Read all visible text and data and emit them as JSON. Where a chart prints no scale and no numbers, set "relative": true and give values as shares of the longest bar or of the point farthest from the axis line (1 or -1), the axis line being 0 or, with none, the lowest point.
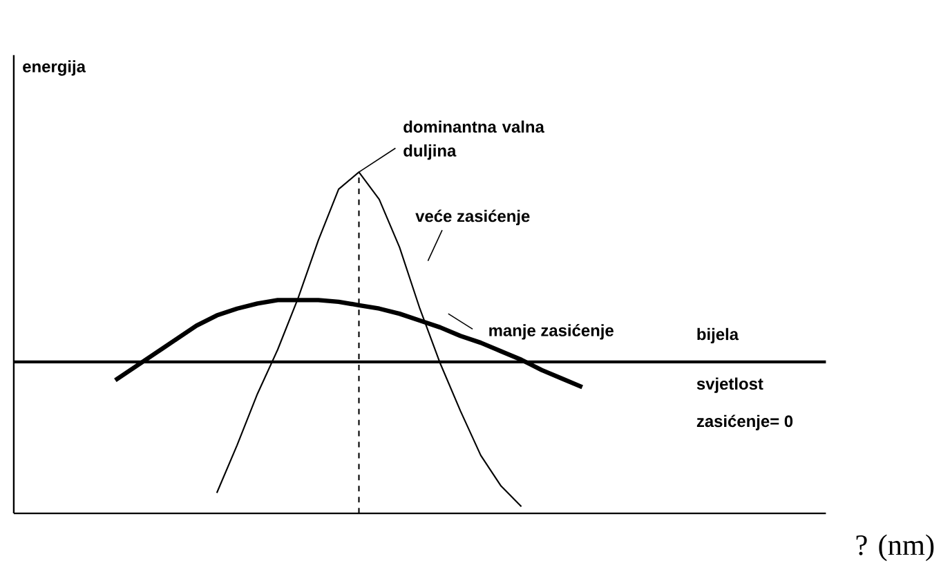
{
  "chart_data": {
    "type": "line",
    "relative": true,
    "xlabel": "? (nm)",
    "marker": "none",
    "line_style": "solid",
    "categories": [
      null,
      null,
      null,
      null,
      null,
      null,
      null,
      null,
      null,
      null,
      null,
      null,
      null,
      null,
      null,
      null,
      null,
      null,
      null,
      null,
      null,
      null,
      null,
      null,
      null,
      null,
      null,
      null,
      null,
      null,
      null,
      null,
      null,
      null,
      null,
      null,
      null,
      null,
      null,
      null,
      null
    ],
    "series": [
      {
        "name": "veće zasićenje",
        "color": "#000000",
        "values": [
          null,
          null,
          null,
          null,
          null,
          null,
          null,
          null,
          null,
          null,
          0.06,
          0.2,
          0.35,
          0.48,
          0.63,
          0.8,
          0.95,
          1.0,
          0.92,
          0.78,
          0.6,
          0.44,
          0.3,
          0.17,
          0.08,
          0.02,
          null,
          null,
          null,
          null,
          null,
          null,
          null,
          null,
          null,
          null,
          null,
          null,
          null,
          null,
          null
        ]
      },
      {
        "name": "manje zasićenje",
        "color": "#000000",
        "values": [
          null,
          null,
          null,
          null,
          null,
          0.39,
          0.43,
          0.47,
          0.51,
          0.55,
          0.58,
          0.6,
          0.615,
          0.625,
          0.625,
          0.625,
          0.62,
          0.61,
          0.6,
          0.585,
          0.565,
          0.545,
          0.52,
          0.5,
          0.475,
          0.45,
          0.42,
          0.395,
          0.37,
          null,
          null,
          null,
          null,
          null,
          null,
          null,
          null,
          null,
          null,
          null,
          null
        ]
      },
      {
        "name": "bijela svjetlost",
        "color": "#000000",
        "values": [
          0.444,
          0.444,
          0.444,
          0.444,
          0.444,
          0.444,
          0.444,
          0.444,
          0.444,
          0.444,
          0.444,
          0.444,
          0.444,
          0.444,
          0.444,
          0.444,
          0.444,
          0.444,
          0.444,
          0.444,
          0.444,
          0.444,
          0.444,
          0.444,
          0.444,
          0.444,
          0.444,
          0.444,
          0.444,
          0.444,
          0.444,
          0.444,
          0.444,
          0.444,
          0.444,
          0.444,
          0.444,
          0.444,
          0.444,
          0.444,
          0.444
        ]
      }
    ],
    "annotations": [
      "energija",
      "dominantna valna duljina",
      "zasićenje= 0"
    ]
  }
}
